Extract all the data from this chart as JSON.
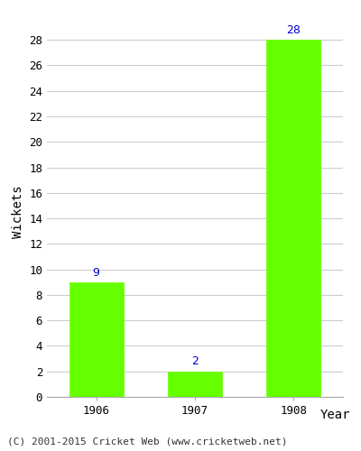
{
  "categories": [
    "1906",
    "1907",
    "1908"
  ],
  "values": [
    9,
    2,
    28
  ],
  "bar_color": "#66ff00",
  "bar_edge_color": "#66ff00",
  "xlabel": "Year",
  "ylabel": "Wickets",
  "ylim": [
    0,
    29
  ],
  "yticks": [
    0,
    2,
    4,
    6,
    8,
    10,
    12,
    14,
    16,
    18,
    20,
    22,
    24,
    26,
    28
  ],
  "annotation_color": "#0000cc",
  "annotation_fontsize": 9,
  "axis_label_fontsize": 10,
  "tick_fontsize": 9,
  "footer_text": "(C) 2001-2015 Cricket Web (www.cricketweb.net)",
  "footer_fontsize": 8,
  "background_color": "#ffffff",
  "grid_color": "#cccccc",
  "bar_width": 0.55
}
